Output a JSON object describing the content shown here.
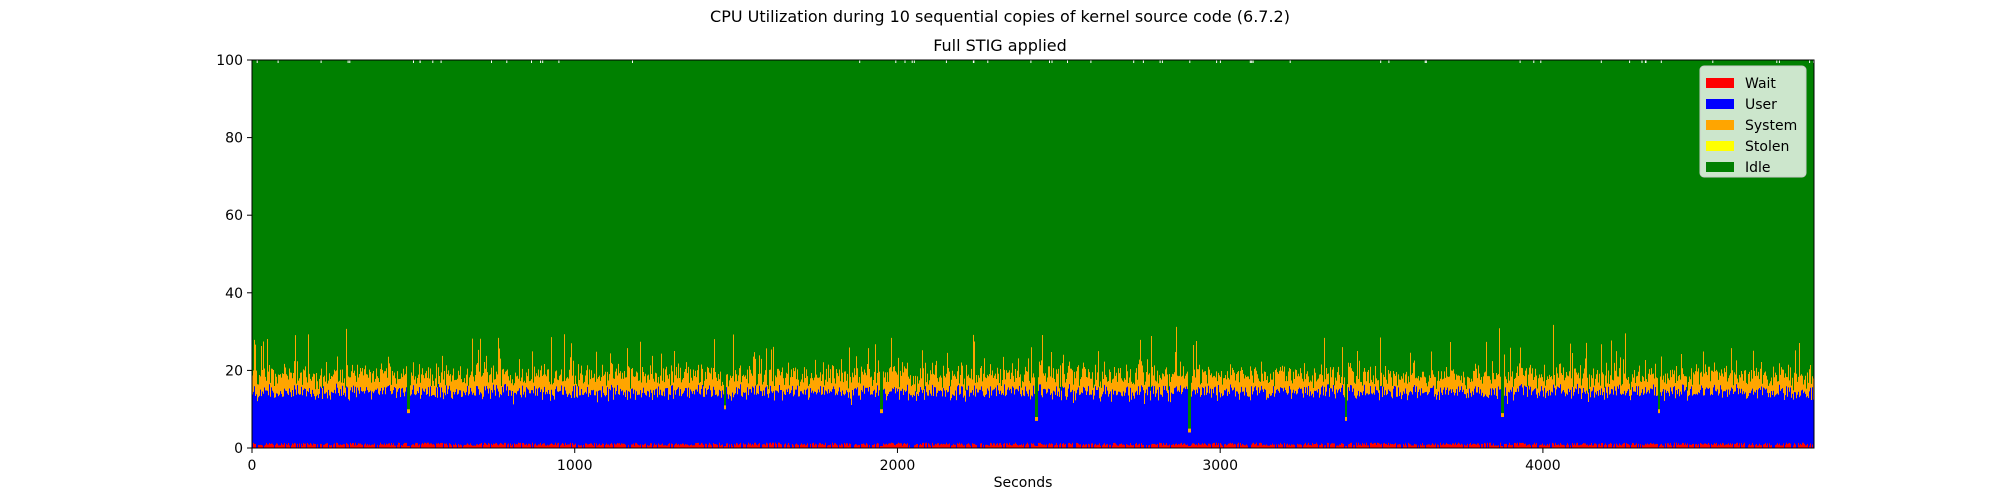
{
  "chart_data": {
    "type": "area",
    "title": "CPU Utilization during 10 sequential copies of kernel source code (6.7.2)",
    "subtitle": "Full STIG applied",
    "xlabel": "Seconds",
    "ylabel": "",
    "xlim": [
      0,
      4840
    ],
    "ylim": [
      0,
      100
    ],
    "x_ticks": [
      0,
      1000,
      2000,
      3000,
      4000
    ],
    "y_ticks": [
      0,
      20,
      40,
      60,
      80,
      100
    ],
    "stacked": true,
    "grid": false,
    "legend_position": "top-right",
    "sample_interval_seconds": 1,
    "series": [
      {
        "name": "Wait",
        "color": "#ff0000",
        "approx_mean": 1,
        "approx_range": [
          0,
          2
        ]
      },
      {
        "name": "User",
        "color": "#0000ff",
        "approx_mean": 14,
        "approx_range": [
          11,
          16
        ]
      },
      {
        "name": "System",
        "color": "#ffa500",
        "approx_mean": 4,
        "approx_range": [
          1,
          14
        ]
      },
      {
        "name": "Stolen",
        "color": "#ffff00",
        "approx_mean": 0,
        "approx_range": [
          0,
          0
        ]
      },
      {
        "name": "Idle",
        "color": "#008000",
        "approx_mean": 81,
        "approx_range": [
          69,
          87
        ]
      }
    ],
    "annotations": [
      {
        "type": "dip",
        "x": 485,
        "stack_top": 10
      },
      {
        "type": "dip",
        "x": 1465,
        "stack_top": 11
      },
      {
        "type": "dip",
        "x": 1950,
        "stack_top": 10
      },
      {
        "type": "dip",
        "x": 2430,
        "stack_top": 8
      },
      {
        "type": "dip",
        "x": 2905,
        "stack_top": 5
      },
      {
        "type": "dip",
        "x": 3390,
        "stack_top": 8
      },
      {
        "type": "dip",
        "x": 3875,
        "stack_top": 9
      },
      {
        "type": "dip",
        "x": 4360,
        "stack_top": 10
      }
    ]
  }
}
